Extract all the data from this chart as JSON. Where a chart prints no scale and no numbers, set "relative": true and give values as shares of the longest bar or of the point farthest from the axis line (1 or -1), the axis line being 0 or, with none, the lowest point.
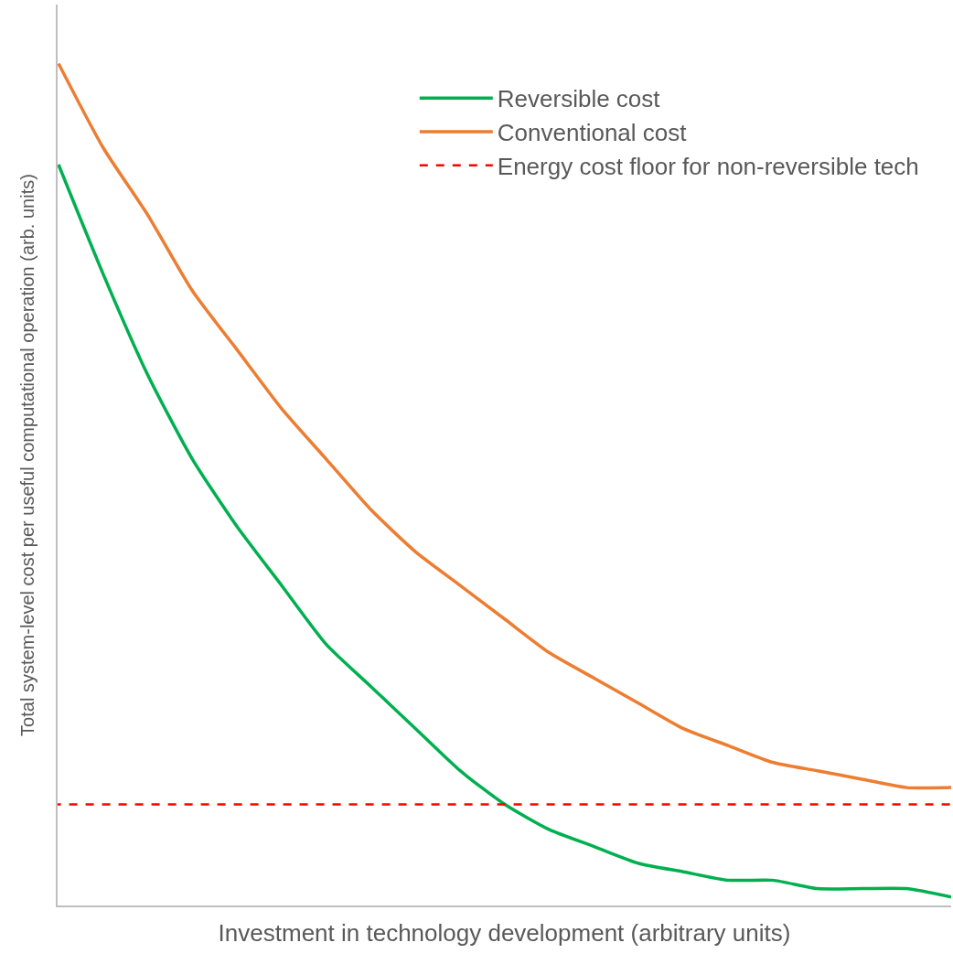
{
  "chart_data": {
    "type": "line",
    "relative": true,
    "xlabel": "Investment in technology development (arbitrary units)",
    "ylabel": "Total system-level cost per useful computational operation (arb. units)",
    "categories": [
      null,
      null,
      null,
      null,
      null,
      null,
      null,
      null,
      null,
      null,
      null,
      null,
      null,
      null,
      null,
      null,
      null,
      null,
      null,
      null,
      null
    ],
    "series": [
      {
        "name": "Reversible cost",
        "color": "#00b050",
        "values": [
          0.88,
          0.75,
          0.63,
          0.53,
          0.45,
          0.38,
          0.31,
          0.26,
          0.21,
          0.16,
          0.12,
          0.09,
          0.07,
          0.05,
          0.04,
          0.03,
          0.03,
          0.02,
          0.02,
          0.02,
          0.01
        ]
      },
      {
        "name": "Conventional cost",
        "color": "#ed7d31",
        "values": [
          1.0,
          0.9,
          0.82,
          0.73,
          0.66,
          0.59,
          0.53,
          0.47,
          0.42,
          0.38,
          0.34,
          0.3,
          0.27,
          0.24,
          0.21,
          0.19,
          0.17,
          0.16,
          0.15,
          0.14,
          0.14
        ]
      }
    ],
    "ref_lines": [
      {
        "axis": "y",
        "value": 0.12,
        "label": "Energy cost floor for non-reversible tech",
        "color": "#ff0000",
        "line_style": "dashed"
      }
    ],
    "grid": false,
    "legend": "top right",
    "marker": "none",
    "line_style": "solid"
  }
}
